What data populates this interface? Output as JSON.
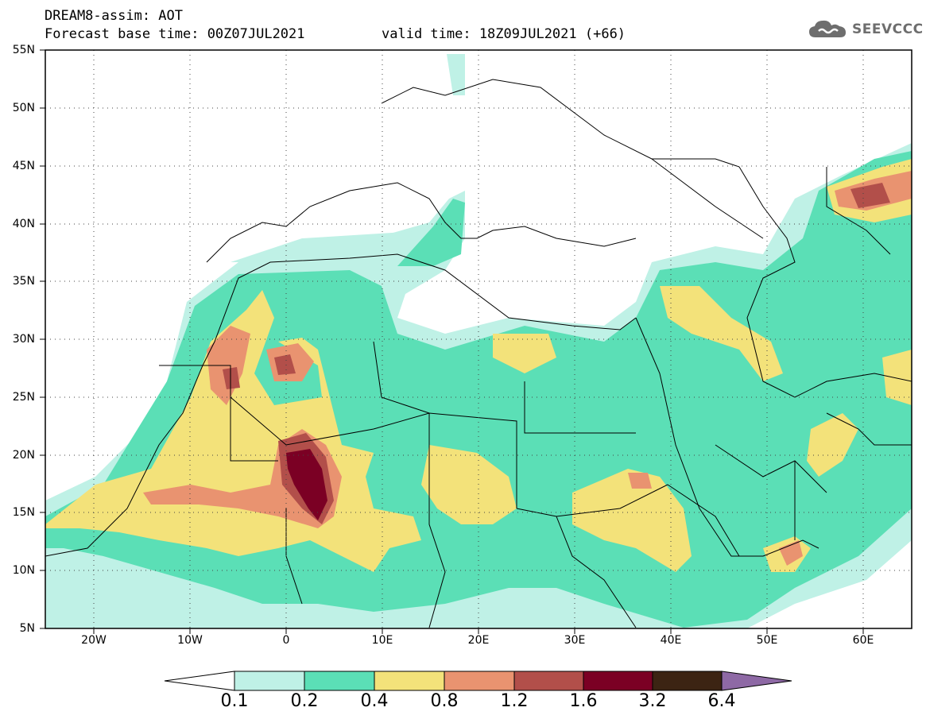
{
  "header": {
    "title": "DREAM8-assim: AOT",
    "base_time": "Forecast base time: 00Z07JUL2021",
    "valid_time": "valid time: 18Z09JUL2021 (+66)"
  },
  "logo": {
    "text": "SEEVCCC",
    "icon": "cloud-icon",
    "color": "#6e6e6e"
  },
  "map": {
    "lat_labels": [
      "55N",
      "50N",
      "45N",
      "40N",
      "35N",
      "30N",
      "25N",
      "20N",
      "15N",
      "10N",
      "5N"
    ],
    "lon_labels": [
      "20W",
      "10W",
      "0",
      "10E",
      "20E",
      "30E",
      "40E",
      "50E",
      "60E"
    ],
    "extent": {
      "lon_min": -25,
      "lon_max": 65,
      "lat_min": 5,
      "lat_max": 55
    }
  },
  "colorbar": {
    "labels": [
      "0.1",
      "0.2",
      "0.4",
      "0.8",
      "1.2",
      "1.6",
      "3.2",
      "6.4"
    ],
    "colors": [
      "#bff1e6",
      "#5bdfb6",
      "#f3e27a",
      "#e99370",
      "#b24f4a",
      "#7b0024",
      "#3c2413",
      "#8e69a5"
    ]
  }
}
